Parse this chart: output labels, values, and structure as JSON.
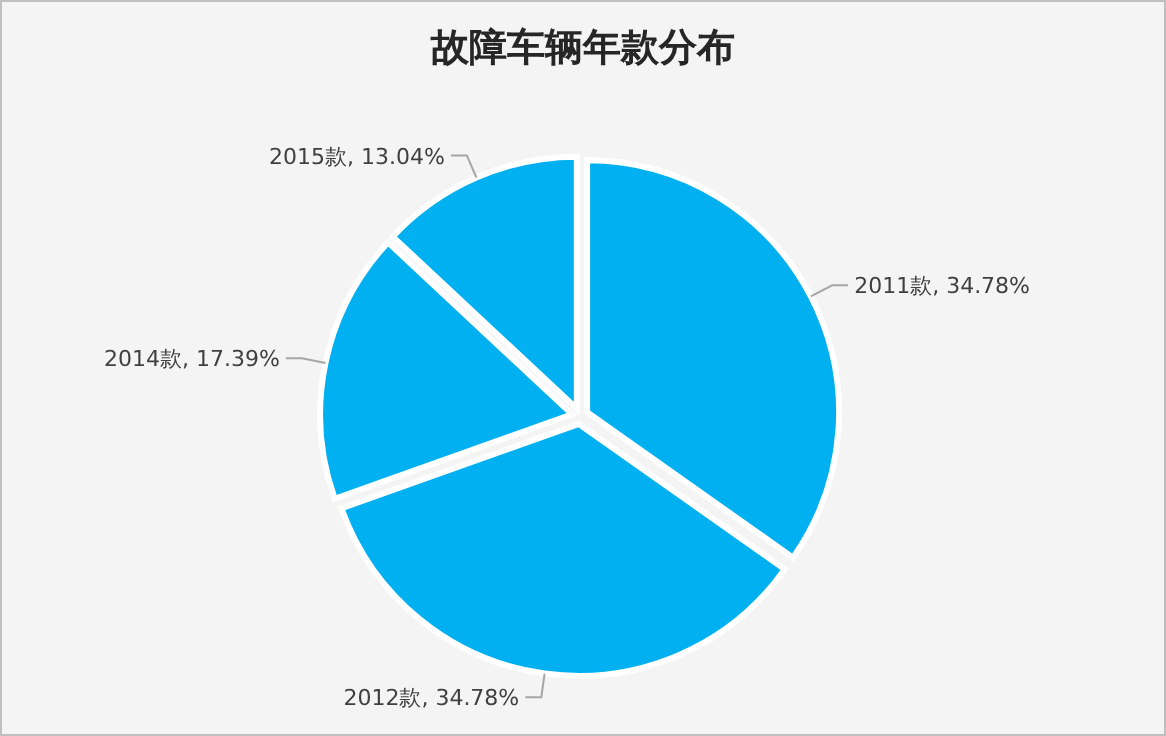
{
  "chart_data": {
    "type": "pie",
    "title": "故障车辆年款分布",
    "categories": [
      "2011款",
      "2012款",
      "2014款",
      "2015款"
    ],
    "values": [
      34.78,
      34.78,
      17.39,
      13.04
    ],
    "value_labels": [
      "34.78%",
      "34.78%",
      "17.39%",
      "13.04%"
    ],
    "colors": [
      "#00b0f0",
      "#00b0f0",
      "#00b0f0",
      "#00b0f0"
    ]
  }
}
